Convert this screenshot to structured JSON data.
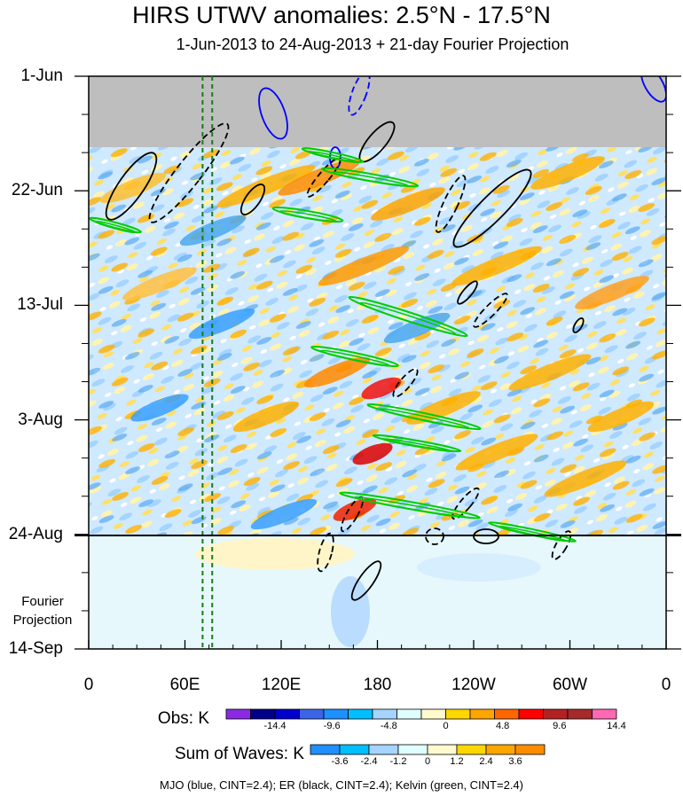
{
  "title": "HIRS UTWV anomalies: 2.5°N - 17.5°N",
  "subtitle": "1-Jun-2013 to 24-Aug-2013 + 21-day Fourier Projection",
  "footer": "MJO (blue, CINT=2.4); ER (black, CINT=2.4); Kelvin (green, CINT=2.4)",
  "projection_label": [
    "Fourier",
    "Projection"
  ],
  "chart_data": {
    "type": "heatmap",
    "title": "HIRS UTWV anomalies: 2.5°N - 17.5°N",
    "subtitle": "1-Jun-2013 to 24-Aug-2013 + 21-day Fourier Projection",
    "x_axis": {
      "ticks": [
        "0",
        "60E",
        "120E",
        "180",
        "120W",
        "60W",
        "0"
      ],
      "range_deg_east": [
        0,
        360
      ]
    },
    "y_axis": {
      "ticks": [
        "1-Jun",
        "22-Jun",
        "13-Jul",
        "3-Aug",
        "24-Aug",
        "14-Sep"
      ],
      "range": [
        "1-Jun",
        "14-Sep"
      ],
      "direction": "top-to-bottom"
    },
    "observation_end": "24-Aug",
    "missing_data_until": "13-Jun",
    "reference_lines_deg_east": [
      71,
      77
    ],
    "obs_colorbar": {
      "label": "Obs: K",
      "tick_labels": [
        "-14.4",
        "-9.6",
        "-4.8",
        "0",
        "4.8",
        "9.6",
        "14.4"
      ],
      "colors": [
        "#8a2be2",
        "#00008b",
        "#0000cd",
        "#3c64e6",
        "#1e90ff",
        "#00bfff",
        "#a4d4ff",
        "#e0ffff",
        "#fffacd",
        "#ffd700",
        "#ffa500",
        "#ff6600",
        "#ff0000",
        "#b22222",
        "#a52a2a",
        "#ff69b4"
      ]
    },
    "waves_colorbar": {
      "label": "Sum of Waves: K",
      "tick_labels": [
        "-3.6",
        "-2.4",
        "-1.2",
        "0",
        "1.2",
        "2.4",
        "3.6"
      ],
      "colors": [
        "#1e90ff",
        "#00bfff",
        "#a4d4ff",
        "#e0ffff",
        "#fffacd",
        "#ffd700",
        "#ffa500",
        "#ff8c00"
      ]
    },
    "contours": {
      "MJO": {
        "color": "#0000ff",
        "cint": 2.4
      },
      "ER": {
        "color": "#000000",
        "cint": 2.4
      },
      "Kelvin": {
        "color": "#00cc00",
        "cint": 2.4
      }
    }
  }
}
